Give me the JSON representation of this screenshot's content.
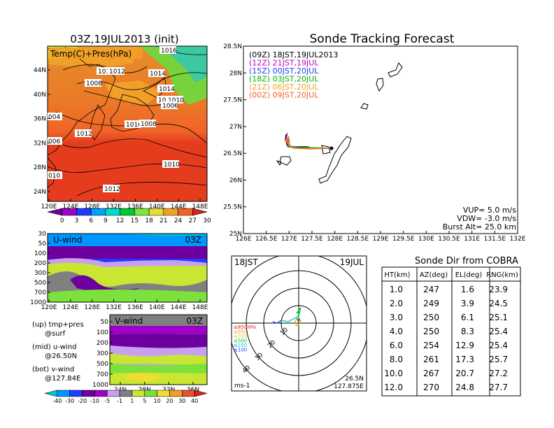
{
  "map_panel": {
    "title": "03Z,19JUL2013 (init)",
    "legend_label": "Temp(C)+Pres(hPa)",
    "x_ticks": [
      "120E",
      "124E",
      "128E",
      "132E",
      "136E",
      "140E",
      "144E",
      "148E"
    ],
    "y_ticks": [
      "44N",
      "40N",
      "36N",
      "32N",
      "28N",
      "24N"
    ],
    "isobars": [
      "1016",
      "1012",
      "1008",
      "1012",
      "1014",
      "1014",
      "1012",
      "1010",
      "1006",
      "1016",
      "1008",
      "004",
      "1012",
      "006",
      "1010",
      "010",
      "1012"
    ],
    "colorbar_labels": [
      "0",
      "3",
      "6",
      "9",
      "12",
      "15",
      "18",
      "21",
      "24",
      "27",
      "30"
    ],
    "colorbar_colors": [
      "#6e00a0",
      "#a000c8",
      "#1e3cff",
      "#00a0ff",
      "#00dcc8",
      "#00c832",
      "#78e63c",
      "#e6dc32",
      "#f0a028",
      "#f06428",
      "#dc1e1e"
    ]
  },
  "uwind_panel": {
    "label": "U-wind",
    "time": "03Z",
    "y_ticks": [
      "30",
      "50",
      "100",
      "200",
      "300",
      "500",
      "700",
      "1000"
    ],
    "x_ticks": [
      "120E",
      "124E",
      "128E",
      "132E",
      "136E",
      "140E",
      "144E",
      "148E"
    ]
  },
  "vwind_panel": {
    "label": "V-wind",
    "time": "03Z",
    "y_ticks": [
      "50",
      "100",
      "200",
      "300",
      "500",
      "700",
      "1000"
    ],
    "x_ticks": [
      "24N",
      "28N",
      "32N",
      "36N"
    ]
  },
  "notes": {
    "up_label": "(up) tmp+pres",
    "up_value": "@surf",
    "mid_label": "(mid) u-wind",
    "mid_value": "@26.50N",
    "bot_label": "(bot) v-wind",
    "bot_value": "@127.84E"
  },
  "wind_colorbar": {
    "labels": [
      "-40",
      "-30",
      "-20",
      "-10",
      "-5",
      "-1",
      "1",
      "5",
      "10",
      "20",
      "30",
      "40"
    ],
    "colors": [
      "#00c8c8",
      "#0096ff",
      "#1e3cff",
      "#6e00a0",
      "#a000c8",
      "#c8a0f0",
      "#808080",
      "#c8e632",
      "#7de13c",
      "#f0dc32",
      "#f0a028",
      "#e65028",
      "#dc1e1e"
    ]
  },
  "tracking": {
    "title": "Sonde Tracking Forecast",
    "legend": [
      {
        "text": "(09Z)  18JST,19JUL2013",
        "color": "#000000"
      },
      {
        "text": "(12Z)  21JST,19JUL",
        "color": "#c000c0"
      },
      {
        "text": "(15Z)  00JST,20JUL",
        "color": "#1e3cff"
      },
      {
        "text": "(18Z)  03JST,20JUL",
        "color": "#00b400"
      },
      {
        "text": "(21Z)  06JST,20JUL",
        "color": "#f0a028"
      },
      {
        "text": "(00Z)  09JST,20JUL",
        "color": "#f06428"
      }
    ],
    "x_ticks": [
      "126E",
      "126.5E",
      "127E",
      "127.5E",
      "128E",
      "128.5E",
      "129E",
      "129.5E",
      "130E",
      "130.5E",
      "131E",
      "131.5E",
      "132E"
    ],
    "y_ticks": [
      "28.5N",
      "28N",
      "27.5N",
      "27N",
      "26.5N",
      "26N",
      "25.5N",
      "25N"
    ],
    "params": [
      "VUP=  5.0  m/s",
      "VDW=  -3.0  m/s",
      "Burst Alt=  25.0  km"
    ]
  },
  "chart_data": {
    "type": "table",
    "title": "Sonde Dir from COBRA",
    "columns": [
      "HT(km)",
      "AZ(deg)",
      "EL(deg)",
      "RNG(km)"
    ],
    "rows": [
      [
        "1.0",
        "247",
        "1.6",
        "23.9"
      ],
      [
        "2.0",
        "249",
        "3.9",
        "24.5"
      ],
      [
        "3.0",
        "250",
        "6.1",
        "25.1"
      ],
      [
        "4.0",
        "250",
        "8.3",
        "25.4"
      ],
      [
        "6.0",
        "254",
        "12.9",
        "25.4"
      ],
      [
        "8.0",
        "261",
        "17.3",
        "25.7"
      ],
      [
        "10.0",
        "267",
        "20.7",
        "27.2"
      ],
      [
        "12.0",
        "270",
        "24.8",
        "27.7"
      ]
    ]
  },
  "hodograph": {
    "left_label": "18JST",
    "right_label": "19JUL",
    "unit": "ms-1",
    "loc_lat": "26.5N",
    "loc_lon": "127.875E",
    "ring_labels": [
      "10",
      "20",
      "30",
      "40"
    ],
    "levels": [
      {
        "text": "≥850hPa",
        "color": "#e61e1e"
      },
      {
        "text": "≤850",
        "color": "#f0a028"
      },
      {
        "text": "≤700",
        "color": "#e6c828"
      },
      {
        "text": "≤500",
        "color": "#00c832"
      },
      {
        "text": "≤250",
        "color": "#00c8c8"
      },
      {
        "text": "≤100",
        "color": "#1e3cff"
      }
    ]
  }
}
